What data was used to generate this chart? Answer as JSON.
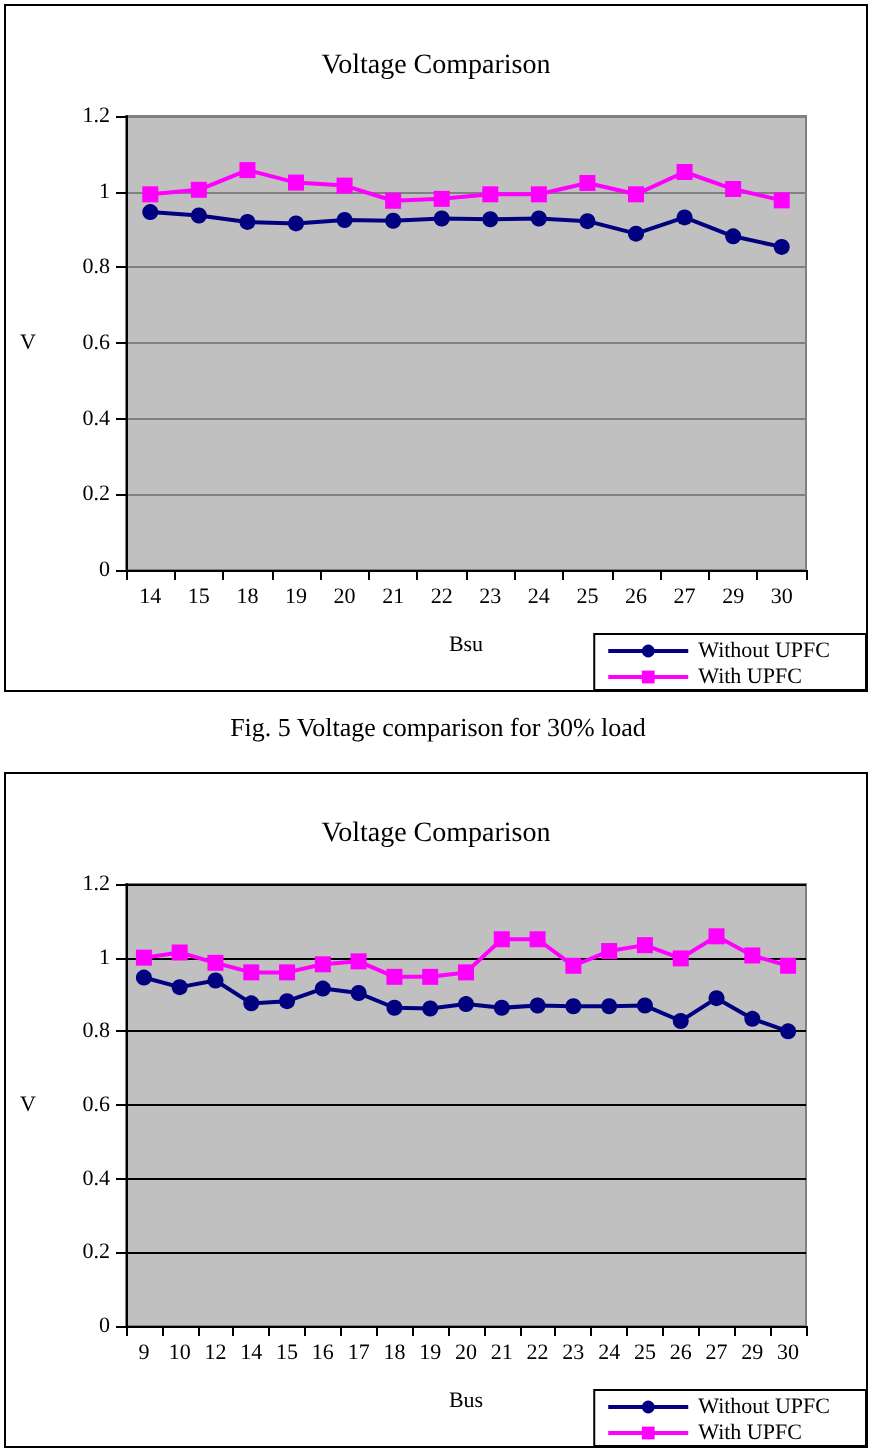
{
  "chart_data": [
    {
      "type": "line",
      "title": "Voltage Comparison",
      "xlabel": "Bsu",
      "ylabel": "V",
      "categories": [
        "14",
        "15",
        "18",
        "19",
        "20",
        "21",
        "22",
        "23",
        "24",
        "25",
        "26",
        "27",
        "29",
        "30"
      ],
      "series": [
        {
          "name": "Without UPFC",
          "color": "#000080",
          "marker": "circle",
          "values": [
            0.946,
            0.937,
            0.92,
            0.916,
            0.925,
            0.923,
            0.929,
            0.927,
            0.929,
            0.922,
            0.889,
            0.932,
            0.882,
            0.854
          ]
        },
        {
          "name": "With UPFC",
          "color": "#ff00ff",
          "marker": "square",
          "values": [
            0.993,
            1.005,
            1.057,
            1.024,
            1.016,
            0.976,
            0.981,
            0.993,
            0.993,
            1.023,
            0.993,
            1.052,
            1.007,
            0.977
          ]
        }
      ],
      "ylim": [
        0,
        1.2
      ],
      "yticks": [
        0,
        0.2,
        0.4,
        0.6,
        0.8,
        1,
        1.2
      ],
      "grid": "y",
      "legend": "bottom right",
      "annotations": [
        "Fig. 5 Voltage comparison for 30% load"
      ]
    },
    {
      "type": "line",
      "title": "Voltage Comparison",
      "xlabel": "Bus",
      "ylabel": "V",
      "categories": [
        "9",
        "10",
        "12",
        "14",
        "15",
        "16",
        "17",
        "18",
        "19",
        "20",
        "21",
        "22",
        "23",
        "24",
        "25",
        "26",
        "27",
        "29",
        "30"
      ],
      "series": [
        {
          "name": "Without UPFC",
          "color": "#000080",
          "marker": "circle",
          "values": [
            0.946,
            0.92,
            0.938,
            0.876,
            0.882,
            0.916,
            0.904,
            0.864,
            0.862,
            0.874,
            0.864,
            0.87,
            0.868,
            0.868,
            0.87,
            0.828,
            0.89,
            0.834,
            0.8
          ]
        },
        {
          "name": "With UPFC",
          "color": "#ff00ff",
          "marker": "square",
          "values": [
            1.0,
            1.014,
            0.986,
            0.96,
            0.96,
            0.982,
            0.99,
            0.948,
            0.948,
            0.96,
            1.05,
            1.05,
            0.978,
            1.018,
            1.034,
            0.998,
            1.058,
            1.006,
            0.978
          ]
        }
      ],
      "ylim": [
        0,
        1.2
      ],
      "yticks": [
        0,
        0.2,
        0.4,
        0.6,
        0.8,
        1,
        1.2
      ],
      "grid": "y",
      "legend": "bottom right"
    }
  ]
}
